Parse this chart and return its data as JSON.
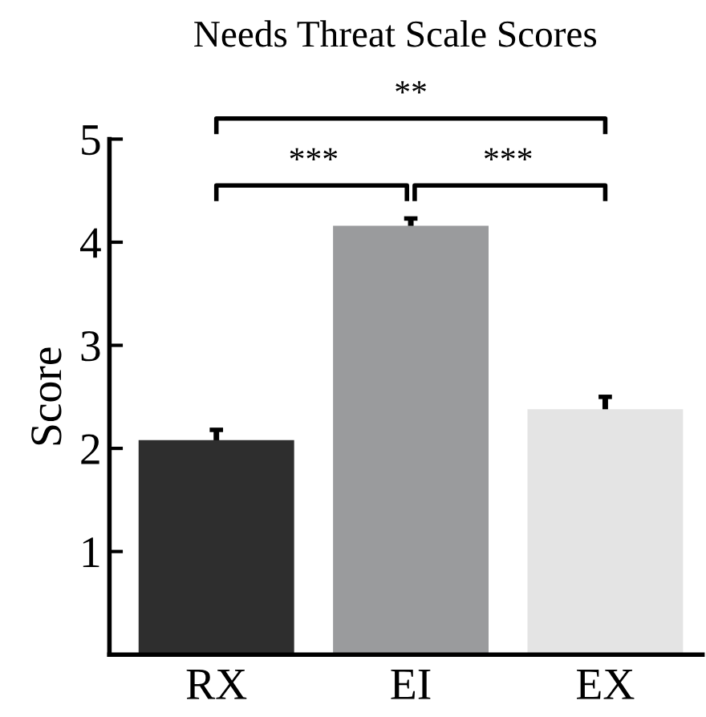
{
  "chart_data": {
    "type": "bar",
    "title": "Needs Threat Scale Scores",
    "ylabel": "Score",
    "categories": [
      "RX",
      "EI",
      "EX"
    ],
    "values": [
      2.08,
      4.16,
      2.38
    ],
    "errors": [
      0.1,
      0.07,
      0.12
    ],
    "colors": [
      "#2e2e2e",
      "#9a9b9d",
      "#e4e4e4"
    ],
    "ylim": [
      0,
      5
    ],
    "yticks": [
      1,
      2,
      3,
      4,
      5
    ],
    "grid": false,
    "legend": false,
    "annotations": [
      "**",
      "***",
      "***"
    ]
  }
}
